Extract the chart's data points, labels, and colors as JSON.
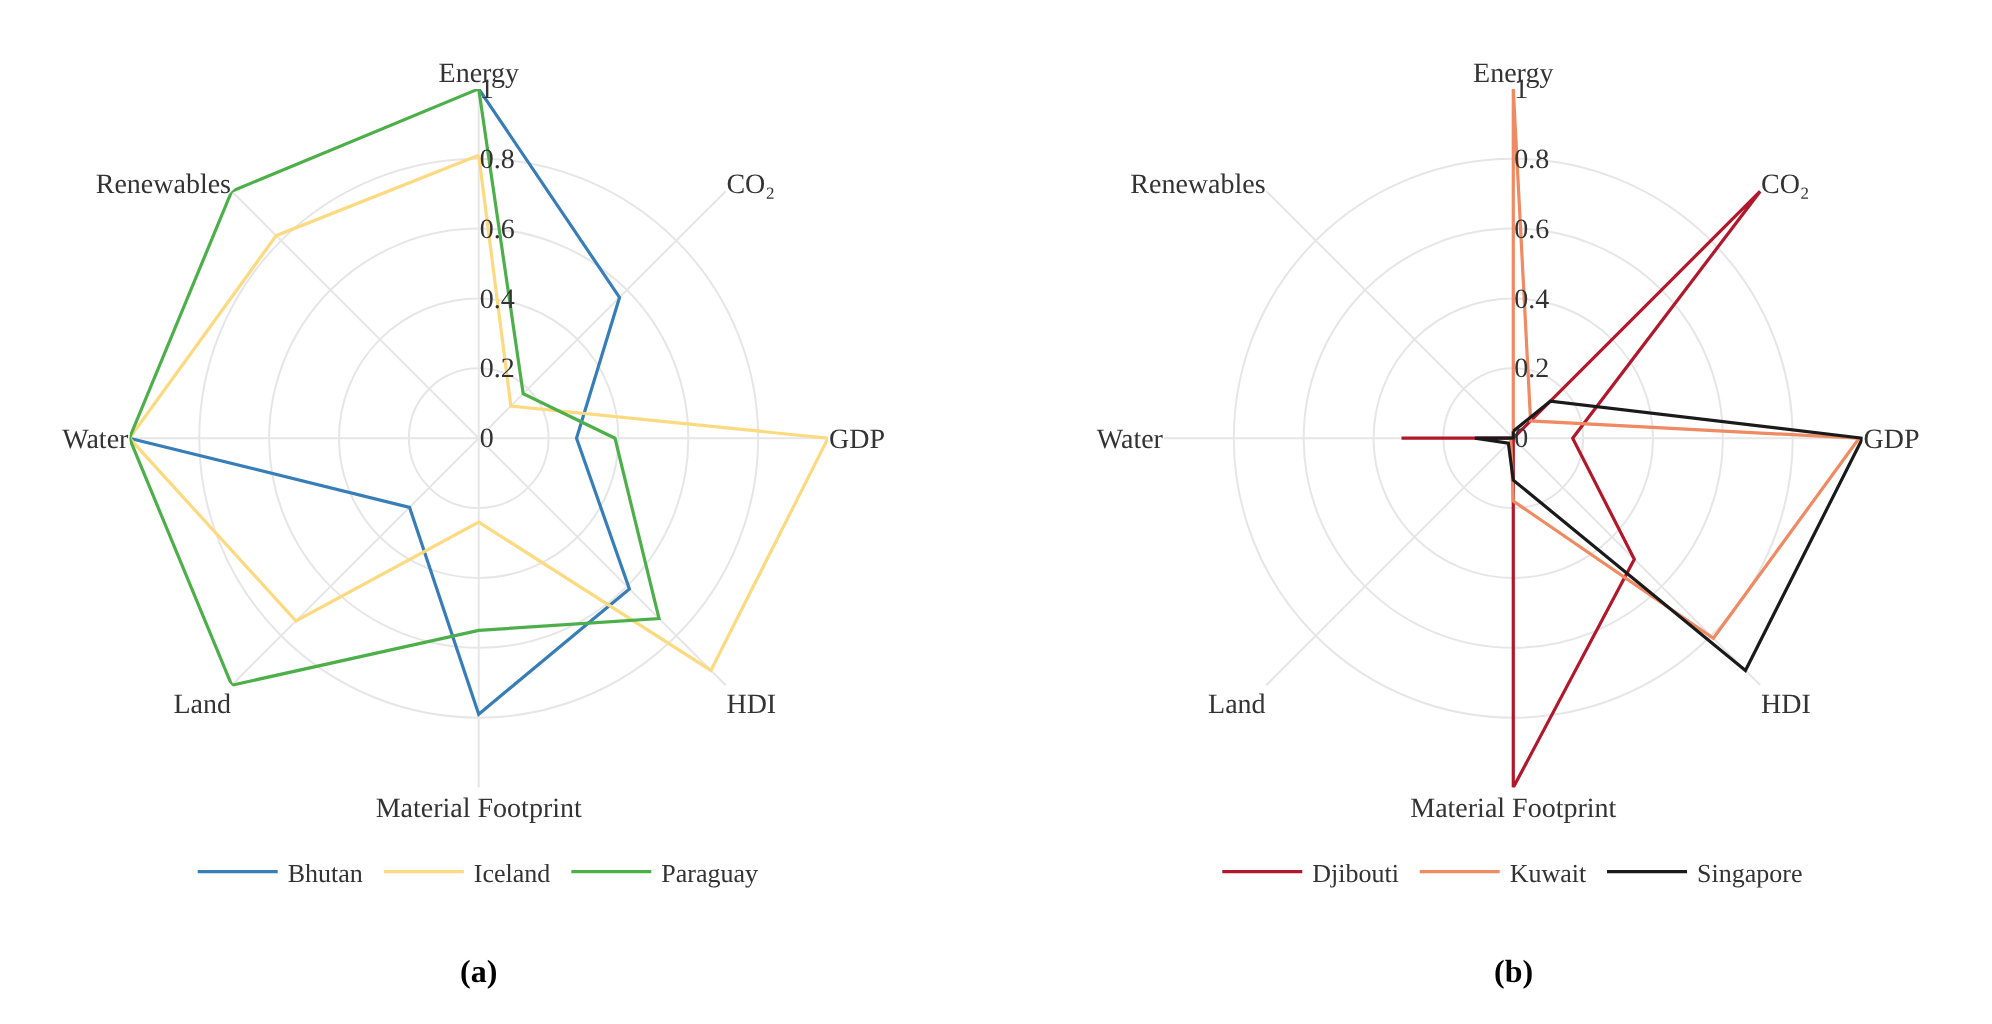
{
  "chart_data": [
    {
      "type": "radar",
      "categories": [
        "Energy",
        "CO₂",
        "GDP",
        "HDI",
        "Material Footprint",
        "Land",
        "Water",
        "Renewables"
      ],
      "ylim": [
        0,
        1
      ],
      "yticks": [
        0,
        0.2,
        0.4,
        0.6,
        0.8,
        1
      ],
      "grid": true,
      "legend": "bottom",
      "line_style": "solid",
      "annotations": [
        "(a)"
      ],
      "series": [
        {
          "name": "Bhutan",
          "color": "#377eb8",
          "values": [
            1.0,
            0.57,
            0.28,
            0.61,
            0.79,
            0.28,
            1.0,
            null
          ]
        },
        {
          "name": "Iceland",
          "color": "#fdda80",
          "values": [
            0.81,
            0.13,
            1.0,
            0.94,
            0.24,
            0.74,
            1.0,
            0.82
          ]
        },
        {
          "name": "Paraguay",
          "color": "#4daf4a",
          "values": [
            1.0,
            0.18,
            0.39,
            0.73,
            0.55,
            1.0,
            1.0,
            1.0
          ]
        }
      ]
    },
    {
      "type": "radar",
      "categories": [
        "Energy",
        "CO₂",
        "GDP",
        "HDI",
        "Material Footprint",
        "Land",
        "Water",
        "Renewables"
      ],
      "ylim": [
        0,
        1
      ],
      "yticks": [
        0,
        0.2,
        0.4,
        0.6,
        0.8,
        1
      ],
      "grid": true,
      "legend": "bottom",
      "line_style": "solid",
      "annotations": [
        "(b)"
      ],
      "series": [
        {
          "name": "Djibouti",
          "color": "#b2182b",
          "values": [
            0,
            1.0,
            0.17,
            0.49,
            1.0,
            0,
            0.32,
            0
          ]
        },
        {
          "name": "Kuwait",
          "color": "#ef8a62",
          "values": [
            1.0,
            0.07,
            0.99,
            0.81,
            0.18,
            0.01,
            0.01,
            0
          ]
        },
        {
          "name": "Singapore",
          "color": "#1a1a1a",
          "values": [
            0.02,
            0.15,
            1.0,
            0.94,
            0.12,
            0.02,
            0.11,
            0
          ]
        }
      ]
    }
  ]
}
